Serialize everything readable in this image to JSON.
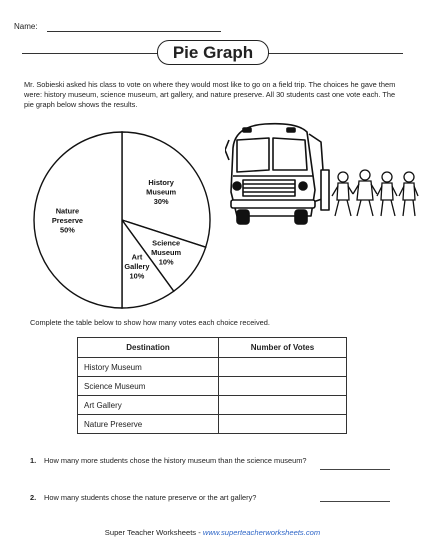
{
  "header": {
    "name_label": "Name:",
    "title": "Pie Graph"
  },
  "intro": {
    "text": "Mr. Sobieski asked his class to vote on where they would most like to go on a field trip. The choices he gave them were: history museum, science museum, art gallery, and nature preserve. All 30 students cast one vote each. The pie graph below shows the results."
  },
  "chart_data": {
    "type": "pie",
    "categories": [
      "History Museum",
      "Science Museum",
      "Art Gallery",
      "Nature Preserve"
    ],
    "values": [
      30,
      10,
      10,
      50
    ],
    "labels": [
      {
        "lines": [
          "History",
          "Museum"
        ],
        "pct": "30%"
      },
      {
        "lines": [
          "Science",
          "Museum"
        ],
        "pct": "10%"
      },
      {
        "lines": [
          "Art",
          "Gallery"
        ],
        "pct": "10%"
      },
      {
        "lines": [
          "Nature",
          "Preserve"
        ],
        "pct": "50%"
      }
    ]
  },
  "table": {
    "instruction": "Complete the table below to show how many votes each choice received.",
    "headers": [
      "Destination",
      "Number of Votes"
    ],
    "rows": [
      "History Museum",
      "Science Museum",
      "Art Gallery",
      "Nature Preserve"
    ]
  },
  "questions": [
    {
      "number": "1.",
      "text": "How many more students chose the history museum than the science museum?"
    },
    {
      "number": "2.",
      "text": "How many students chose the nature preserve or the art gallery?"
    }
  ],
  "footer": {
    "brand": "Super Teacher Worksheets",
    "separator": " - ",
    "url": "www.superteacherworksheets.com"
  }
}
